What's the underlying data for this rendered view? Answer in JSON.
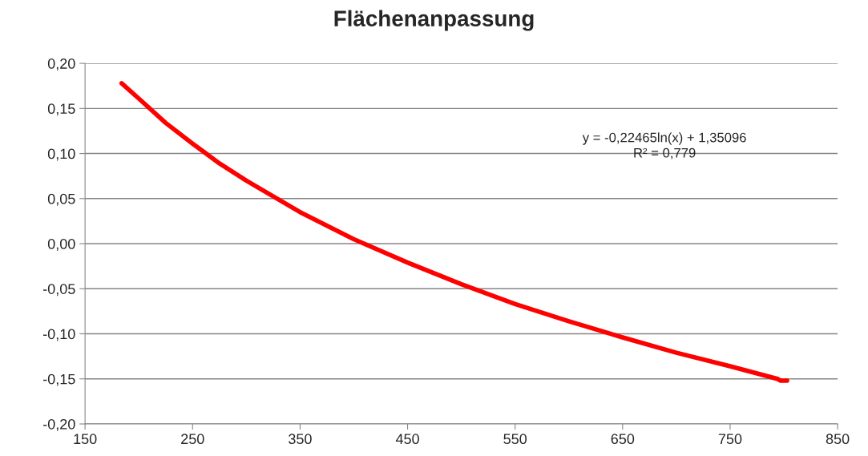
{
  "chart_data": {
    "type": "line",
    "title": "Flächenanpassung",
    "x": [
      184,
      200,
      225,
      250,
      275,
      300,
      350,
      400,
      450,
      500,
      550,
      600,
      650,
      700,
      750,
      794,
      797,
      803
    ],
    "series": [
      {
        "color": "#ff0000",
        "values": [
          0.178,
          0.161,
          0.134,
          0.111,
          0.089,
          0.07,
          0.035,
          0.005,
          -0.021,
          -0.045,
          -0.067,
          -0.086,
          -0.104,
          -0.121,
          -0.136,
          -0.15,
          -0.152,
          -0.152
        ]
      }
    ],
    "xlim": [
      150,
      850
    ],
    "xticks": [
      150,
      250,
      350,
      450,
      550,
      650,
      750,
      850
    ],
    "ylim": [
      -0.2,
      0.2
    ],
    "yticks": [
      {
        "value": -0.2,
        "label": "-0,20"
      },
      {
        "value": -0.15,
        "label": "-0,15"
      },
      {
        "value": -0.1,
        "label": "-0,10"
      },
      {
        "value": -0.05,
        "label": "-0,05"
      },
      {
        "value": 0,
        "label": "0,00"
      },
      {
        "value": 0.05,
        "label": "0,05"
      },
      {
        "value": 0.1,
        "label": "0,10"
      },
      {
        "value": 0.15,
        "label": "0,15"
      },
      {
        "value": 0.2,
        "label": "0,20"
      }
    ],
    "annotations": [
      "y = -0,22465ln(x) + 1,35096\nR² = 0,779"
    ],
    "grid": "y",
    "marker": "none",
    "line_style": "solid"
  }
}
